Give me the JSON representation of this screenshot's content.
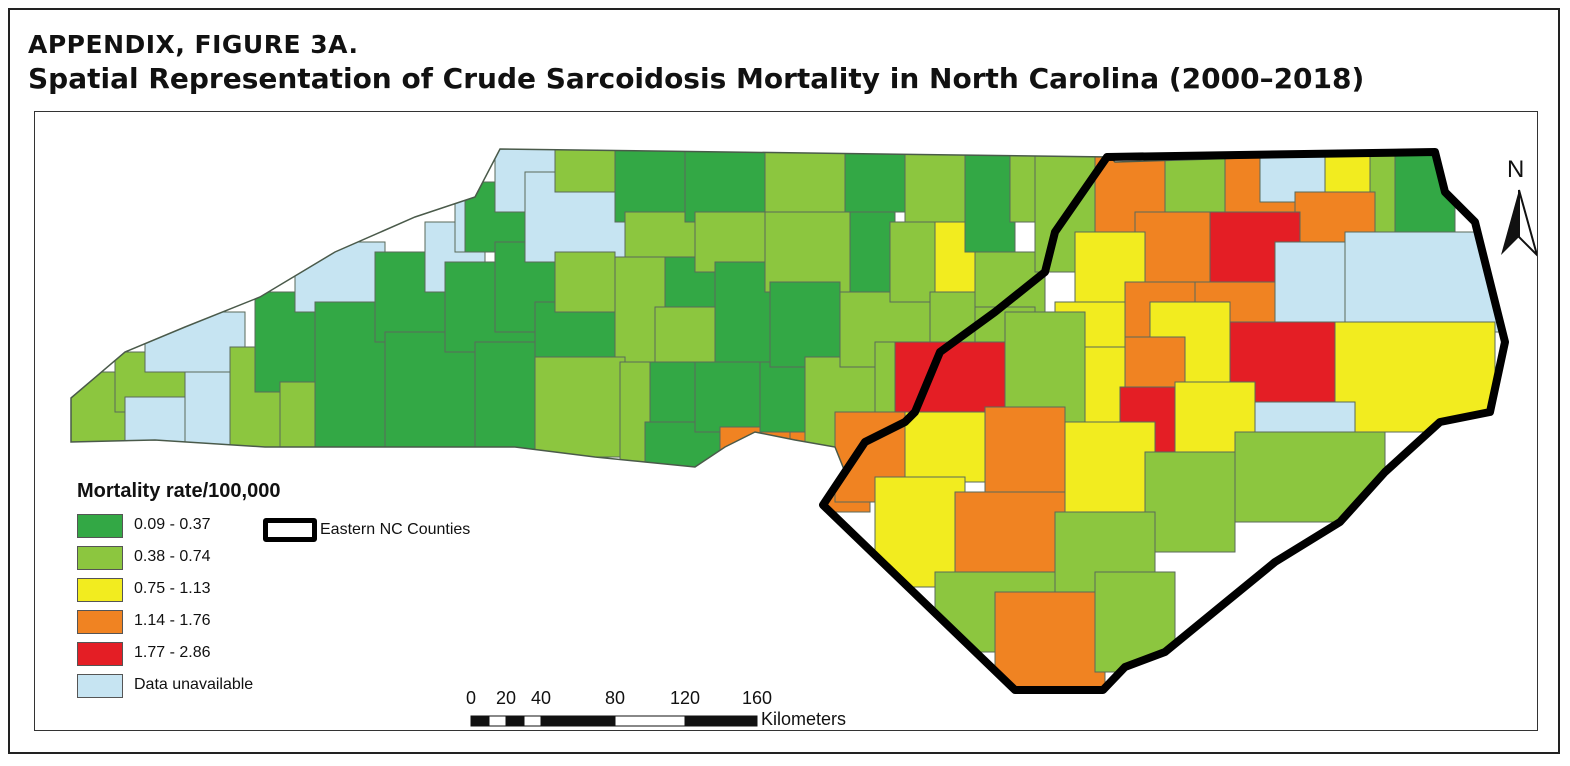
{
  "figure": {
    "label": "APPENDIX, FIGURE 3A.",
    "title": "Spatial Representation of Crude Sarcoidosis Mortality in North Carolina (2000–2018)"
  },
  "legend": {
    "title": "Mortality rate/100,000",
    "classes": [
      {
        "label": "0.09 - 0.37",
        "color": "#33a845"
      },
      {
        "label": "0.38 - 0.74",
        "color": "#8cc63f"
      },
      {
        "label": "0.75 - 1.13",
        "color": "#f2ec1f"
      },
      {
        "label": "1.14 - 1.76",
        "color": "#f08322"
      },
      {
        "label": "1.77 - 2.86",
        "color": "#e41e25"
      },
      {
        "label": "Data unavailable",
        "color": "#c6e4f2"
      }
    ],
    "outline_label": "Eastern NC Counties"
  },
  "scale_bar": {
    "ticks": [
      "0",
      "20",
      "40",
      "80",
      "120",
      "160"
    ],
    "unit": "Kilometers"
  },
  "north_arrow": {
    "label": "N"
  },
  "colors": {
    "dark_green": "#33a845",
    "light_green": "#8cc63f",
    "yellow": "#f2ec1f",
    "orange": "#f08322",
    "red": "#e41e25",
    "unavailable": "#c6e4f2",
    "county_border": "#5a6a5a"
  }
}
